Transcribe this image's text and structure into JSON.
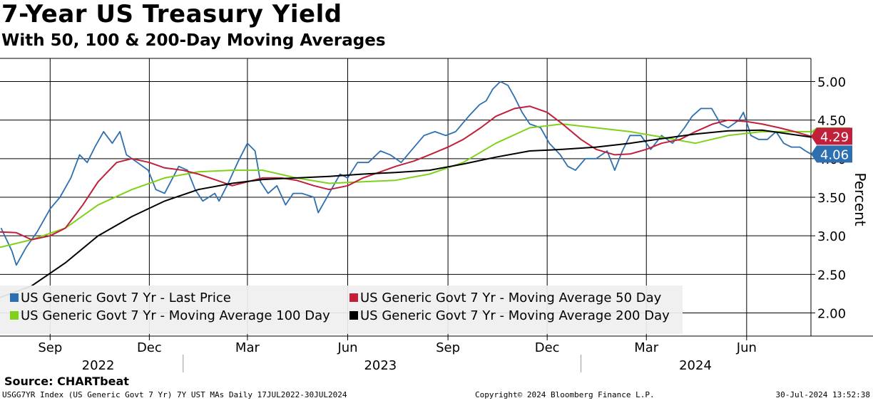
{
  "title": "7-Year US Treasury Yield",
  "subtitle": "With 50, 100 & 200-Day Moving Averages",
  "source": "Source: CHARTbeat",
  "footer": {
    "left": "USGG7YR Index (US Generic Govt 7 Yr) 7Y UST MAs  Daily 17JUL2022-30JUL2024",
    "mid": "Copyright© 2024 Bloomberg Finance L.P.",
    "right": "30-Jul-2024 13:52:38"
  },
  "colors": {
    "price": "#2e6fb0",
    "ma50": "#c0203a",
    "ma100": "#7fd11a",
    "ma200": "#000000"
  },
  "chart_data": {
    "type": "line",
    "title": "7-Year US Treasury Yield",
    "subtitle": "With 50, 100 & 200-Day Moving Averages",
    "ylabel": "Percent",
    "ylim": [
      1.7,
      5.3
    ],
    "yticks": [
      "2.00",
      "2.50",
      "3.00",
      "3.50",
      "4.00",
      "4.50",
      "5.00"
    ],
    "x_range": [
      "2022-07-17",
      "2024-07-30"
    ],
    "month_ticks": [
      {
        "label": "Sep",
        "date": "2022-09-01"
      },
      {
        "label": "Dec",
        "date": "2022-12-01"
      },
      {
        "label": "Mar",
        "date": "2023-03-01"
      },
      {
        "label": "Jun",
        "date": "2023-06-01"
      },
      {
        "label": "Sep",
        "date": "2023-09-01"
      },
      {
        "label": "Dec",
        "date": "2023-12-01"
      },
      {
        "label": "Mar",
        "date": "2024-03-01"
      },
      {
        "label": "Jun",
        "date": "2024-06-01"
      }
    ],
    "years": [
      {
        "label": "2022",
        "center": "2022-10-15"
      },
      {
        "label": "2023",
        "center": "2023-07-01"
      },
      {
        "label": "2024",
        "center": "2024-04-15"
      }
    ],
    "year_separators": [
      "2023-01-01",
      "2024-01-01"
    ],
    "last_value_badges": [
      {
        "series": "ma50",
        "text": "4.29",
        "value": 4.29
      },
      {
        "series": "price",
        "text": "4.06",
        "value": 4.06
      }
    ],
    "legend": [
      {
        "key": "price",
        "label": "US Generic Govt 7 Yr - Last Price"
      },
      {
        "key": "ma50",
        "label": "US Generic Govt 7 Yr - Moving Average 50 Day"
      },
      {
        "key": "ma100",
        "label": "US Generic Govt 7 Yr - Moving Average 100 Day"
      },
      {
        "key": "ma200",
        "label": "US Generic Govt 7 Yr - Moving Average 200 Day"
      }
    ],
    "series": [
      {
        "key": "price",
        "name": "US Generic Govt 7 Yr - Last Price",
        "points": [
          [
            "2022-07-18",
            3.1
          ],
          [
            "2022-07-28",
            2.8
          ],
          [
            "2022-08-01",
            2.62
          ],
          [
            "2022-08-10",
            2.85
          ],
          [
            "2022-08-20",
            3.05
          ],
          [
            "2022-09-01",
            3.35
          ],
          [
            "2022-09-10",
            3.5
          ],
          [
            "2022-09-20",
            3.75
          ],
          [
            "2022-09-28",
            4.05
          ],
          [
            "2022-10-05",
            3.95
          ],
          [
            "2022-10-12",
            4.15
          ],
          [
            "2022-10-20",
            4.35
          ],
          [
            "2022-10-28",
            4.2
          ],
          [
            "2022-11-04",
            4.35
          ],
          [
            "2022-11-10",
            4.05
          ],
          [
            "2022-11-20",
            3.95
          ],
          [
            "2022-11-30",
            3.85
          ],
          [
            "2022-12-07",
            3.6
          ],
          [
            "2022-12-15",
            3.55
          ],
          [
            "2022-12-28",
            3.9
          ],
          [
            "2023-01-05",
            3.85
          ],
          [
            "2023-01-12",
            3.6
          ],
          [
            "2023-01-19",
            3.45
          ],
          [
            "2023-01-30",
            3.55
          ],
          [
            "2023-02-03",
            3.45
          ],
          [
            "2023-02-12",
            3.7
          ],
          [
            "2023-02-20",
            3.95
          ],
          [
            "2023-03-01",
            4.2
          ],
          [
            "2023-03-08",
            4.1
          ],
          [
            "2023-03-13",
            3.7
          ],
          [
            "2023-03-20",
            3.55
          ],
          [
            "2023-03-28",
            3.65
          ],
          [
            "2023-04-05",
            3.4
          ],
          [
            "2023-04-12",
            3.55
          ],
          [
            "2023-04-20",
            3.55
          ],
          [
            "2023-05-01",
            3.5
          ],
          [
            "2023-05-05",
            3.3
          ],
          [
            "2023-05-15",
            3.55
          ],
          [
            "2023-05-25",
            3.8
          ],
          [
            "2023-06-01",
            3.75
          ],
          [
            "2023-06-10",
            3.95
          ],
          [
            "2023-06-20",
            3.95
          ],
          [
            "2023-07-01",
            4.1
          ],
          [
            "2023-07-10",
            4.05
          ],
          [
            "2023-07-20",
            3.95
          ],
          [
            "2023-08-01",
            4.15
          ],
          [
            "2023-08-10",
            4.3
          ],
          [
            "2023-08-20",
            4.35
          ],
          [
            "2023-08-30",
            4.3
          ],
          [
            "2023-09-08",
            4.35
          ],
          [
            "2023-09-20",
            4.55
          ],
          [
            "2023-09-30",
            4.7
          ],
          [
            "2023-10-06",
            4.75
          ],
          [
            "2023-10-12",
            4.9
          ],
          [
            "2023-10-19",
            5.0
          ],
          [
            "2023-10-26",
            4.95
          ],
          [
            "2023-11-01",
            4.8
          ],
          [
            "2023-11-08",
            4.6
          ],
          [
            "2023-11-15",
            4.45
          ],
          [
            "2023-11-25",
            4.4
          ],
          [
            "2023-12-03",
            4.2
          ],
          [
            "2023-12-13",
            4.05
          ],
          [
            "2023-12-20",
            3.9
          ],
          [
            "2023-12-27",
            3.85
          ],
          [
            "2024-01-05",
            4.0
          ],
          [
            "2024-01-15",
            4.0
          ],
          [
            "2024-01-25",
            4.1
          ],
          [
            "2024-02-01",
            3.85
          ],
          [
            "2024-02-08",
            4.1
          ],
          [
            "2024-02-15",
            4.3
          ],
          [
            "2024-02-25",
            4.3
          ],
          [
            "2024-03-05",
            4.12
          ],
          [
            "2024-03-15",
            4.3
          ],
          [
            "2024-03-25",
            4.2
          ],
          [
            "2024-04-05",
            4.4
          ],
          [
            "2024-04-12",
            4.55
          ],
          [
            "2024-04-20",
            4.65
          ],
          [
            "2024-04-30",
            4.65
          ],
          [
            "2024-05-08",
            4.45
          ],
          [
            "2024-05-15",
            4.4
          ],
          [
            "2024-05-25",
            4.5
          ],
          [
            "2024-05-29",
            4.6
          ],
          [
            "2024-06-05",
            4.3
          ],
          [
            "2024-06-12",
            4.25
          ],
          [
            "2024-06-20",
            4.25
          ],
          [
            "2024-06-28",
            4.35
          ],
          [
            "2024-07-05",
            4.2
          ],
          [
            "2024-07-12",
            4.15
          ],
          [
            "2024-07-20",
            4.15
          ],
          [
            "2024-07-25",
            4.1
          ],
          [
            "2024-07-30",
            4.06
          ]
        ]
      },
      {
        "key": "ma50",
        "name": "US Generic Govt 7 Yr - Moving Average 50 Day",
        "points": [
          [
            "2022-07-17",
            3.05
          ],
          [
            "2022-08-01",
            3.04
          ],
          [
            "2022-08-15",
            2.95
          ],
          [
            "2022-09-01",
            3.0
          ],
          [
            "2022-09-15",
            3.1
          ],
          [
            "2022-10-01",
            3.4
          ],
          [
            "2022-10-15",
            3.7
          ],
          [
            "2022-11-01",
            3.95
          ],
          [
            "2022-11-15",
            4.0
          ],
          [
            "2022-12-01",
            3.95
          ],
          [
            "2022-12-15",
            3.88
          ],
          [
            "2023-01-01",
            3.85
          ],
          [
            "2023-01-15",
            3.8
          ],
          [
            "2023-02-01",
            3.72
          ],
          [
            "2023-02-15",
            3.65
          ],
          [
            "2023-03-01",
            3.7
          ],
          [
            "2023-03-15",
            3.75
          ],
          [
            "2023-04-01",
            3.75
          ],
          [
            "2023-04-15",
            3.72
          ],
          [
            "2023-05-01",
            3.65
          ],
          [
            "2023-05-15",
            3.6
          ],
          [
            "2023-06-01",
            3.65
          ],
          [
            "2023-06-15",
            3.75
          ],
          [
            "2023-07-01",
            3.83
          ],
          [
            "2023-07-15",
            3.9
          ],
          [
            "2023-08-01",
            3.97
          ],
          [
            "2023-08-15",
            4.05
          ],
          [
            "2023-09-01",
            4.15
          ],
          [
            "2023-09-15",
            4.25
          ],
          [
            "2023-10-01",
            4.4
          ],
          [
            "2023-10-15",
            4.55
          ],
          [
            "2023-11-01",
            4.65
          ],
          [
            "2023-11-15",
            4.68
          ],
          [
            "2023-12-01",
            4.6
          ],
          [
            "2023-12-15",
            4.45
          ],
          [
            "2024-01-01",
            4.25
          ],
          [
            "2024-01-15",
            4.12
          ],
          [
            "2024-02-01",
            4.05
          ],
          [
            "2024-02-15",
            4.06
          ],
          [
            "2024-03-01",
            4.12
          ],
          [
            "2024-03-15",
            4.2
          ],
          [
            "2024-04-01",
            4.25
          ],
          [
            "2024-04-15",
            4.35
          ],
          [
            "2024-05-01",
            4.45
          ],
          [
            "2024-05-15",
            4.5
          ],
          [
            "2024-06-01",
            4.48
          ],
          [
            "2024-06-15",
            4.45
          ],
          [
            "2024-07-01",
            4.4
          ],
          [
            "2024-07-15",
            4.35
          ],
          [
            "2024-07-30",
            4.29
          ]
        ]
      },
      {
        "key": "ma100",
        "name": "US Generic Govt 7 Yr - Moving Average 100 Day",
        "points": [
          [
            "2022-07-17",
            2.85
          ],
          [
            "2022-08-15",
            2.95
          ],
          [
            "2022-09-15",
            3.1
          ],
          [
            "2022-10-15",
            3.4
          ],
          [
            "2022-11-15",
            3.6
          ],
          [
            "2022-12-15",
            3.75
          ],
          [
            "2023-01-15",
            3.83
          ],
          [
            "2023-02-15",
            3.85
          ],
          [
            "2023-03-15",
            3.85
          ],
          [
            "2023-04-15",
            3.75
          ],
          [
            "2023-05-15",
            3.68
          ],
          [
            "2023-06-15",
            3.7
          ],
          [
            "2023-07-15",
            3.72
          ],
          [
            "2023-08-15",
            3.8
          ],
          [
            "2023-09-15",
            3.95
          ],
          [
            "2023-10-15",
            4.2
          ],
          [
            "2023-11-15",
            4.4
          ],
          [
            "2023-12-15",
            4.45
          ],
          [
            "2024-01-15",
            4.4
          ],
          [
            "2024-02-15",
            4.35
          ],
          [
            "2024-03-15",
            4.28
          ],
          [
            "2024-04-15",
            4.2
          ],
          [
            "2024-05-15",
            4.3
          ],
          [
            "2024-06-15",
            4.35
          ],
          [
            "2024-07-30",
            4.35
          ]
        ]
      },
      {
        "key": "ma200",
        "name": "US Generic Govt 7 Yr - Moving Average 200 Day",
        "points": [
          [
            "2022-07-17",
            2.2
          ],
          [
            "2022-08-15",
            2.35
          ],
          [
            "2022-09-15",
            2.65
          ],
          [
            "2022-10-15",
            3.0
          ],
          [
            "2022-11-15",
            3.25
          ],
          [
            "2022-12-15",
            3.45
          ],
          [
            "2023-01-15",
            3.6
          ],
          [
            "2023-02-15",
            3.68
          ],
          [
            "2023-03-15",
            3.73
          ],
          [
            "2023-04-15",
            3.75
          ],
          [
            "2023-05-15",
            3.77
          ],
          [
            "2023-06-15",
            3.8
          ],
          [
            "2023-07-15",
            3.82
          ],
          [
            "2023-08-15",
            3.85
          ],
          [
            "2023-09-15",
            3.93
          ],
          [
            "2023-10-15",
            4.02
          ],
          [
            "2023-11-15",
            4.1
          ],
          [
            "2023-12-15",
            4.12
          ],
          [
            "2024-01-15",
            4.15
          ],
          [
            "2024-02-15",
            4.2
          ],
          [
            "2024-03-15",
            4.26
          ],
          [
            "2024-04-15",
            4.32
          ],
          [
            "2024-05-15",
            4.36
          ],
          [
            "2024-06-15",
            4.37
          ],
          [
            "2024-07-30",
            4.28
          ]
        ]
      }
    ]
  }
}
